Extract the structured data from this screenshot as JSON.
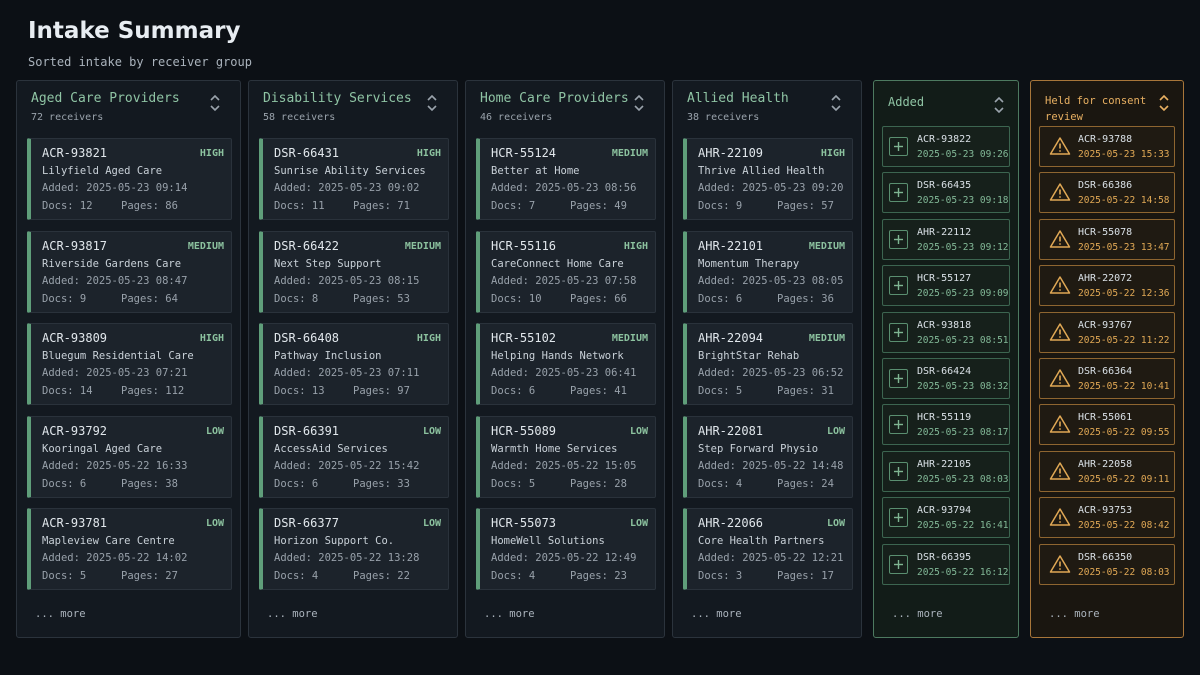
{
  "page": {
    "title": "Intake Summary",
    "subtitle": "Sorted intake by receiver group"
  },
  "colors": {
    "accent_green": "#8fc4a4",
    "accent_amber": "#e8b062",
    "background": "#0c1015"
  },
  "icons": {
    "collapse": "chevron-up-down-icon",
    "add": "plus-icon",
    "held": "warning-triangle-icon"
  },
  "columns": [
    {
      "title": "Aged Care Providers",
      "count": "72 receivers",
      "more": "... more",
      "cards": [
        {
          "id": "ACR-93821",
          "priority": "HIGH",
          "name": "Lilyfield Aged Care",
          "added": "Added: 2025-05-23 09:14",
          "docs": "Docs: 12",
          "pages": "Pages: 86"
        },
        {
          "id": "ACR-93817",
          "priority": "MEDIUM",
          "name": "Riverside Gardens Care",
          "added": "Added: 2025-05-23 08:47",
          "docs": "Docs: 9",
          "pages": "Pages: 64"
        },
        {
          "id": "ACR-93809",
          "priority": "HIGH",
          "name": "Bluegum Residential Care",
          "added": "Added: 2025-05-23 07:21",
          "docs": "Docs: 14",
          "pages": "Pages: 112"
        },
        {
          "id": "ACR-93792",
          "priority": "LOW",
          "name": "Kooringal Aged Care",
          "added": "Added: 2025-05-22 16:33",
          "docs": "Docs: 6",
          "pages": "Pages: 38"
        },
        {
          "id": "ACR-93781",
          "priority": "LOW",
          "name": "Mapleview Care Centre",
          "added": "Added: 2025-05-22 14:02",
          "docs": "Docs: 5",
          "pages": "Pages: 27"
        }
      ]
    },
    {
      "title": "Disability Services",
      "count": "58 receivers",
      "more": "... more",
      "cards": [
        {
          "id": "DSR-66431",
          "priority": "HIGH",
          "name": "Sunrise Ability Services",
          "added": "Added: 2025-05-23 09:02",
          "docs": "Docs: 11",
          "pages": "Pages: 71"
        },
        {
          "id": "DSR-66422",
          "priority": "MEDIUM",
          "name": "Next Step Support",
          "added": "Added: 2025-05-23 08:15",
          "docs": "Docs: 8",
          "pages": "Pages: 53"
        },
        {
          "id": "DSR-66408",
          "priority": "HIGH",
          "name": "Pathway Inclusion",
          "added": "Added: 2025-05-23 07:11",
          "docs": "Docs: 13",
          "pages": "Pages: 97"
        },
        {
          "id": "DSR-66391",
          "priority": "LOW",
          "name": "AccessAid Services",
          "added": "Added: 2025-05-22 15:42",
          "docs": "Docs: 6",
          "pages": "Pages: 33"
        },
        {
          "id": "DSR-66377",
          "priority": "LOW",
          "name": "Horizon Support Co.",
          "added": "Added: 2025-05-22 13:28",
          "docs": "Docs: 4",
          "pages": "Pages: 22"
        }
      ]
    },
    {
      "title": "Home Care Providers",
      "count": "46 receivers",
      "more": "... more",
      "cards": [
        {
          "id": "HCR-55124",
          "priority": "MEDIUM",
          "name": "Better at Home",
          "added": "Added: 2025-05-23 08:56",
          "docs": "Docs: 7",
          "pages": "Pages: 49"
        },
        {
          "id": "HCR-55116",
          "priority": "HIGH",
          "name": "CareConnect Home Care",
          "added": "Added: 2025-05-23 07:58",
          "docs": "Docs: 10",
          "pages": "Pages: 66"
        },
        {
          "id": "HCR-55102",
          "priority": "MEDIUM",
          "name": "Helping Hands Network",
          "added": "Added: 2025-05-23 06:41",
          "docs": "Docs: 6",
          "pages": "Pages: 41"
        },
        {
          "id": "HCR-55089",
          "priority": "LOW",
          "name": "Warmth Home Services",
          "added": "Added: 2025-05-22 15:05",
          "docs": "Docs: 5",
          "pages": "Pages: 28"
        },
        {
          "id": "HCR-55073",
          "priority": "LOW",
          "name": "HomeWell Solutions",
          "added": "Added: 2025-05-22 12:49",
          "docs": "Docs: 4",
          "pages": "Pages: 23"
        }
      ]
    },
    {
      "title": "Allied Health",
      "count": "38 receivers",
      "more": "... more",
      "cards": [
        {
          "id": "AHR-22109",
          "priority": "HIGH",
          "name": "Thrive Allied Health",
          "added": "Added: 2025-05-23 09:20",
          "docs": "Docs: 9",
          "pages": "Pages: 57"
        },
        {
          "id": "AHR-22101",
          "priority": "MEDIUM",
          "name": "Momentum Therapy",
          "added": "Added: 2025-05-23 08:05",
          "docs": "Docs: 6",
          "pages": "Pages: 36"
        },
        {
          "id": "AHR-22094",
          "priority": "MEDIUM",
          "name": "BrightStar Rehab",
          "added": "Added: 2025-05-23 06:52",
          "docs": "Docs: 5",
          "pages": "Pages: 31"
        },
        {
          "id": "AHR-22081",
          "priority": "LOW",
          "name": "Step Forward Physio",
          "added": "Added: 2025-05-22 14:48",
          "docs": "Docs: 4",
          "pages": "Pages: 24"
        },
        {
          "id": "AHR-22066",
          "priority": "LOW",
          "name": "Core Health Partners",
          "added": "Added: 2025-05-22 12:21",
          "docs": "Docs: 3",
          "pages": "Pages: 17"
        }
      ]
    }
  ],
  "added": {
    "title": "Added",
    "more": "... more",
    "items": [
      {
        "id": "ACR-93822",
        "time": "2025-05-23 09:26"
      },
      {
        "id": "DSR-66435",
        "time": "2025-05-23 09:18"
      },
      {
        "id": "AHR-22112",
        "time": "2025-05-23 09:12"
      },
      {
        "id": "HCR-55127",
        "time": "2025-05-23 09:09"
      },
      {
        "id": "ACR-93818",
        "time": "2025-05-23 08:51"
      },
      {
        "id": "DSR-66424",
        "time": "2025-05-23 08:32"
      },
      {
        "id": "HCR-55119",
        "time": "2025-05-23 08:17"
      },
      {
        "id": "AHR-22105",
        "time": "2025-05-23 08:03"
      },
      {
        "id": "ACR-93794",
        "time": "2025-05-22 16:41"
      },
      {
        "id": "DSR-66395",
        "time": "2025-05-22 16:12"
      }
    ]
  },
  "held": {
    "title_line1": "Held for consent",
    "title_line2": "review",
    "more": "... more",
    "items": [
      {
        "id": "ACR-93788",
        "time": "2025-05-23 15:33"
      },
      {
        "id": "DSR-66386",
        "time": "2025-05-22 14:58"
      },
      {
        "id": "HCR-55078",
        "time": "2025-05-23 13:47"
      },
      {
        "id": "AHR-22072",
        "time": "2025-05-22 12:36"
      },
      {
        "id": "ACR-93767",
        "time": "2025-05-22 11:22"
      },
      {
        "id": "DSR-66364",
        "time": "2025-05-22 10:41"
      },
      {
        "id": "HCR-55061",
        "time": "2025-05-22 09:55"
      },
      {
        "id": "AHR-22058",
        "time": "2025-05-22 09:11"
      },
      {
        "id": "ACR-93753",
        "time": "2025-05-22 08:42"
      },
      {
        "id": "DSR-66350",
        "time": "2025-05-22 08:03"
      }
    ]
  }
}
